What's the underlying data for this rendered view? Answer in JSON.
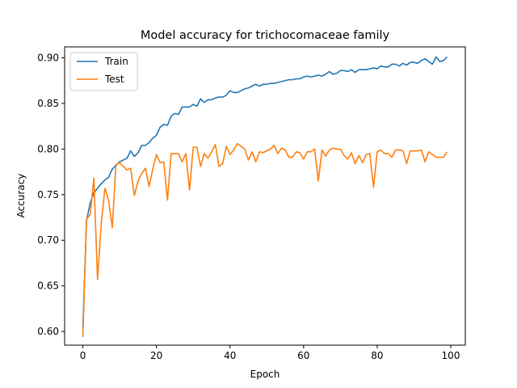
{
  "chart_data": {
    "type": "line",
    "title": "Model accuracy for trichocomaceae family",
    "xlabel": "Epoch",
    "ylabel": "Accuracy",
    "xlim": [
      -4.95,
      103.95
    ],
    "ylim": [
      0.585,
      0.912
    ],
    "xticks": [
      0,
      20,
      40,
      60,
      80,
      100
    ],
    "xtick_labels": [
      "0",
      "20",
      "40",
      "60",
      "80",
      "100"
    ],
    "yticks": [
      0.6,
      0.65,
      0.7,
      0.75,
      0.8,
      0.85,
      0.9
    ],
    "ytick_labels": [
      "0.60",
      "0.65",
      "0.70",
      "0.75",
      "0.80",
      "0.85",
      "0.90"
    ],
    "grid": false,
    "legend_position": "top-left",
    "x": [
      0,
      1,
      2,
      3,
      4,
      5,
      6,
      7,
      8,
      9,
      10,
      11,
      12,
      13,
      14,
      15,
      16,
      17,
      18,
      19,
      20,
      21,
      22,
      23,
      24,
      25,
      26,
      27,
      28,
      29,
      30,
      31,
      32,
      33,
      34,
      35,
      36,
      37,
      38,
      39,
      40,
      41,
      42,
      43,
      44,
      45,
      46,
      47,
      48,
      49,
      50,
      51,
      52,
      53,
      54,
      55,
      56,
      57,
      58,
      59,
      60,
      61,
      62,
      63,
      64,
      65,
      66,
      67,
      68,
      69,
      70,
      71,
      72,
      73,
      74,
      75,
      76,
      77,
      78,
      79,
      80,
      81,
      82,
      83,
      84,
      85,
      86,
      87,
      88,
      89,
      90,
      91,
      92,
      93,
      94,
      95,
      96,
      97,
      98,
      99
    ],
    "series": [
      {
        "name": "Train",
        "color": "#1f77b4",
        "values": [
          0.603,
          0.721,
          0.741,
          0.752,
          0.757,
          0.762,
          0.766,
          0.769,
          0.778,
          0.782,
          0.786,
          0.788,
          0.79,
          0.798,
          0.792,
          0.796,
          0.804,
          0.804,
          0.807,
          0.812,
          0.815,
          0.824,
          0.827,
          0.826,
          0.836,
          0.839,
          0.838,
          0.846,
          0.846,
          0.846,
          0.849,
          0.847,
          0.855,
          0.851,
          0.854,
          0.854,
          0.856,
          0.857,
          0.857,
          0.859,
          0.864,
          0.862,
          0.862,
          0.864,
          0.866,
          0.867,
          0.869,
          0.871,
          0.869,
          0.871,
          0.871,
          0.872,
          0.872,
          0.873,
          0.874,
          0.875,
          0.876,
          0.876,
          0.877,
          0.877,
          0.879,
          0.88,
          0.879,
          0.88,
          0.881,
          0.88,
          0.882,
          0.885,
          0.882,
          0.883,
          0.886,
          0.886,
          0.885,
          0.887,
          0.884,
          0.887,
          0.887,
          0.887,
          0.888,
          0.889,
          0.888,
          0.891,
          0.89,
          0.89,
          0.893,
          0.893,
          0.891,
          0.894,
          0.892,
          0.895,
          0.895,
          0.894,
          0.897,
          0.899,
          0.896,
          0.893,
          0.901,
          0.896,
          0.897,
          0.901
        ]
      },
      {
        "name": "Test",
        "color": "#ff7f0e",
        "values": [
          0.594,
          0.723,
          0.728,
          0.768,
          0.657,
          0.718,
          0.757,
          0.744,
          0.714,
          0.783,
          0.785,
          0.781,
          0.777,
          0.779,
          0.749,
          0.765,
          0.773,
          0.779,
          0.759,
          0.778,
          0.794,
          0.785,
          0.786,
          0.744,
          0.795,
          0.795,
          0.795,
          0.786,
          0.795,
          0.755,
          0.802,
          0.802,
          0.781,
          0.795,
          0.79,
          0.797,
          0.805,
          0.781,
          0.784,
          0.803,
          0.794,
          0.799,
          0.806,
          0.803,
          0.8,
          0.788,
          0.797,
          0.786,
          0.797,
          0.796,
          0.798,
          0.8,
          0.804,
          0.795,
          0.801,
          0.799,
          0.791,
          0.791,
          0.797,
          0.796,
          0.789,
          0.797,
          0.797,
          0.8,
          0.765,
          0.799,
          0.792,
          0.799,
          0.801,
          0.8,
          0.8,
          0.793,
          0.789,
          0.796,
          0.784,
          0.793,
          0.785,
          0.794,
          0.795,
          0.758,
          0.797,
          0.799,
          0.795,
          0.795,
          0.791,
          0.799,
          0.799,
          0.798,
          0.784,
          0.798,
          0.798,
          0.798,
          0.799,
          0.786,
          0.797,
          0.794,
          0.791,
          0.791,
          0.791,
          0.797
        ]
      }
    ]
  }
}
